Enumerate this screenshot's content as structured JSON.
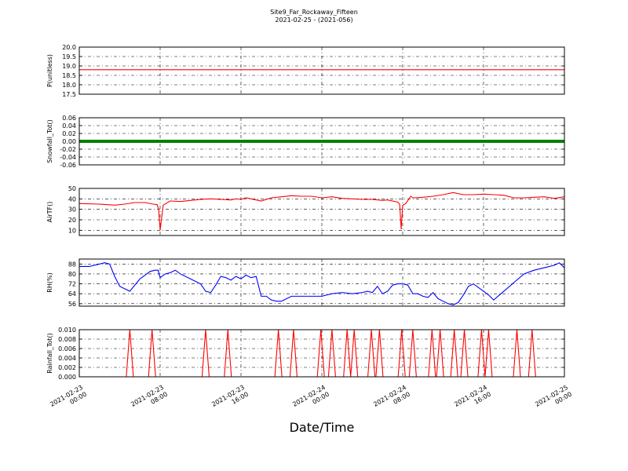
{
  "chart_data": {
    "type": "line",
    "title": "Site9_Far_Rockaway_Fifteen",
    "subtitle": "2021-02-25 - (2021-056)",
    "xlabel": "Date/Time",
    "x_ticks": [
      "2021-02-23\n00:00",
      "2021-02-23\n08:00",
      "2021-02-23\n16:00",
      "2021-02-24\n00:00",
      "2021-02-24\n08:00",
      "2021-02-24\n16:00",
      "2021-02-25\n00:00"
    ],
    "x_range_hours": [
      0,
      48
    ],
    "grid": true,
    "panels": [
      {
        "ylabel": "P(unitless)",
        "ylim": [
          17.5,
          20.0
        ],
        "yticks": [
          "17.5",
          "18.0",
          "18.5",
          "19.0",
          "19.5",
          "20.0"
        ],
        "color": "#ff0000",
        "style": "line",
        "series": [
          {
            "x": [
              0,
              48
            ],
            "y": [
              18.8,
              18.8
            ]
          }
        ]
      },
      {
        "ylabel": "Snowfall_Tot()",
        "ylim": [
          -0.06,
          0.06
        ],
        "yticks": [
          "-0.06",
          "-0.04",
          "-0.02",
          "0.00",
          "0.02",
          "0.04",
          "0.06"
        ],
        "color": "#008000",
        "style": "thick",
        "series": [
          {
            "x": [
              0,
              48
            ],
            "y": [
              0,
              0
            ]
          }
        ]
      },
      {
        "ylabel": "AirTF()",
        "ylim": [
          5,
          50
        ],
        "yticks": [
          "10",
          "20",
          "30",
          "40",
          "50"
        ],
        "color": "#ff0000",
        "style": "line",
        "series": [
          {
            "x": [
              0,
              2,
              3.5,
              4.5,
              5.5,
              6.5,
              7.3,
              7.7,
              7.85,
              8.0,
              8.3,
              9.0,
              10,
              11,
              12,
              13,
              14,
              15,
              15.5,
              16,
              16.5,
              17,
              17.5,
              18,
              19,
              20,
              21,
              22,
              23,
              24,
              25,
              26,
              27,
              28,
              29,
              30,
              30.5,
              31.5,
              31.7,
              31.85,
              32.0,
              32.3,
              32.8,
              33,
              34,
              35,
              36,
              37,
              38,
              39,
              40,
              41,
              42,
              43,
              44,
              45,
              46,
              47,
              48
            ],
            "y": [
              35.5,
              35,
              34,
              35,
              36.5,
              36.5,
              35,
              34.5,
              30,
              10,
              34,
              38,
              37.5,
              38.5,
              39.5,
              40,
              39.5,
              39,
              40,
              39.5,
              41,
              40,
              39,
              38,
              41,
              42,
              43,
              42.5,
              42.5,
              41,
              42,
              40.5,
              40,
              39.5,
              39.5,
              38.5,
              39,
              37,
              35,
              11,
              34,
              35.5,
              42.5,
              41,
              41.5,
              42.5,
              44,
              46,
              44,
              44,
              44.5,
              44,
              43.5,
              41,
              41,
              41.5,
              42,
              40.5,
              42
            ]
          }
        ]
      },
      {
        "ylabel": "RH(%)",
        "ylim": [
          54,
          92
        ],
        "yticks": [
          "56",
          "64",
          "72",
          "80",
          "88"
        ],
        "color": "#0000ff",
        "style": "line",
        "series": [
          {
            "x": [
              0,
              1,
              2,
              2.5,
              3,
              3.5,
              4,
              4.5,
              5,
              5.5,
              6,
              6.5,
              7,
              7.5,
              7.8,
              8.0,
              8.5,
              9,
              9.5,
              10,
              11,
              12,
              12.5,
              13,
              13.5,
              14,
              14.5,
              15,
              15.5,
              16,
              16.5,
              17,
              17.5,
              18,
              18.5,
              19,
              19.5,
              20,
              21,
              22,
              23,
              24,
              25,
              26,
              27,
              28,
              28.5,
              29,
              29.5,
              30,
              30.5,
              31,
              31.5,
              32,
              32.5,
              33,
              33.5,
              34,
              34.5,
              35,
              35.5,
              36,
              36.5,
              37,
              37.5,
              38,
              38.5,
              39,
              40,
              40.5,
              41,
              42,
              43,
              44,
              45,
              46,
              47,
              47.5,
              48
            ],
            "y": [
              86,
              86,
              88,
              89,
              88,
              78,
              70,
              68,
              66,
              71,
              76,
              79,
              82,
              83,
              83,
              77,
              80,
              81,
              83,
              80,
              76,
              72,
              66,
              65,
              71,
              78,
              77,
              75,
              78,
              76,
              79,
              77,
              78,
              62,
              62,
              59,
              58,
              58,
              62,
              62,
              62,
              62,
              64,
              65,
              64,
              65,
              66,
              65,
              70,
              64,
              66,
              71,
              72,
              72,
              71,
              64,
              64,
              62,
              61,
              65,
              60,
              58,
              56,
              55,
              57,
              63,
              70,
              72,
              66,
              63,
              59,
              66,
              73,
              80,
              83,
              85,
              87,
              89,
              85
            ]
          }
        ]
      },
      {
        "ylabel": "Rainfall_Tot()",
        "ylim": [
          0,
          0.01
        ],
        "yticks": [
          "0.000",
          "0.002",
          "0.004",
          "0.006",
          "0.008",
          "0.010"
        ],
        "color": "#ff0000",
        "style": "spikes",
        "spike_value": 0.01,
        "spikes_at_hours": [
          5,
          7.2,
          12.5,
          14.7,
          19.7,
          21.2,
          23.9,
          25.0,
          26.5,
          27.2,
          28.9,
          29.7,
          31.9,
          33.0,
          34.9,
          35.7,
          37.1,
          38.1,
          39.8,
          40.5,
          43.3,
          44.8
        ]
      }
    ]
  }
}
